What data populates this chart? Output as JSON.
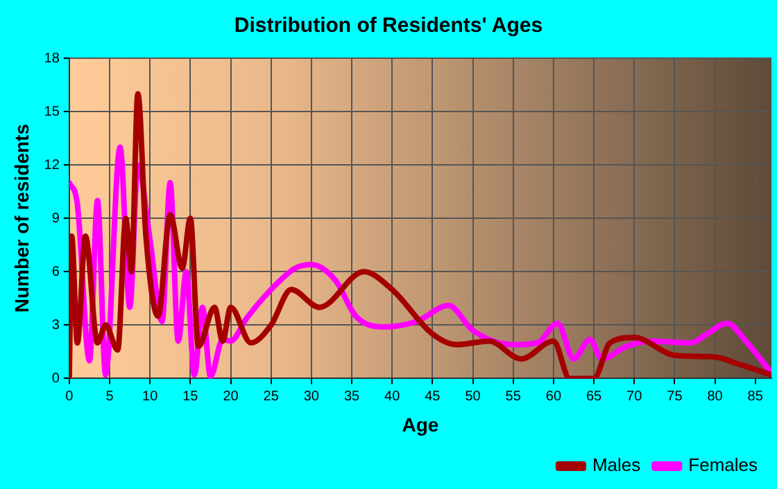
{
  "chart_data": {
    "type": "line",
    "title": "Distribution of Residents' Ages",
    "xlabel": "Age",
    "ylabel": "Number of residents",
    "xlim": [
      0,
      87
    ],
    "xticks": [
      0,
      5,
      10,
      15,
      20,
      25,
      30,
      35,
      40,
      45,
      50,
      55,
      60,
      65,
      70,
      75,
      80,
      85
    ],
    "ylim": [
      0,
      18
    ],
    "yticks": [
      0,
      3,
      6,
      9,
      12,
      15,
      18
    ],
    "grid": true,
    "legend": "bottom right",
    "marker": "none",
    "line_style": "solid",
    "series": [
      {
        "name": "Males",
        "color": "#a50000",
        "x": [
          0,
          0.3,
          1,
          2,
          3.5,
          4.5,
          6,
          7,
          7.7,
          8.5,
          9.5,
          11,
          12.5,
          14,
          15,
          16,
          18,
          19,
          20,
          22.5,
          25,
          27.5,
          31,
          36.5,
          40,
          45,
          48,
          52,
          56,
          60,
          62,
          65,
          67,
          70,
          75,
          80,
          83,
          87
        ],
        "values": [
          0,
          8,
          2,
          8,
          2,
          3,
          1.6,
          9,
          6,
          16,
          8,
          3.5,
          9.2,
          6.2,
          9,
          1.8,
          4,
          2.1,
          4,
          2,
          3,
          5,
          4,
          6,
          5,
          2.5,
          1.9,
          2.1,
          1.1,
          2.1,
          0,
          0,
          2,
          2.3,
          1.3,
          1.2,
          0.8,
          0.2
        ]
      },
      {
        "name": "Females",
        "color": "#ff00ff",
        "x": [
          0,
          1,
          2.5,
          3.5,
          4.5,
          6.3,
          7.5,
          8.5,
          10,
          11.5,
          12.5,
          13.5,
          14.5,
          15.5,
          16.5,
          17.5,
          19,
          20,
          22,
          25,
          28,
          30,
          33,
          35.5,
          39,
          43,
          47,
          50,
          55,
          58,
          60.5,
          62.5,
          64.5,
          66,
          69,
          72,
          77,
          79,
          81.5,
          84,
          87
        ],
        "values": [
          11,
          9.8,
          1,
          10,
          0.2,
          13,
          4,
          12,
          7.8,
          3.2,
          11,
          2.1,
          6,
          0.2,
          4,
          0.1,
          2.2,
          2.1,
          3.4,
          5,
          6.2,
          6.4,
          5.5,
          3.5,
          2.9,
          3.2,
          4.1,
          2.7,
          1.9,
          2,
          3.1,
          1.1,
          2.2,
          1.1,
          1.8,
          2.1,
          2,
          2.5,
          3.1,
          2,
          0.3
        ]
      }
    ]
  }
}
